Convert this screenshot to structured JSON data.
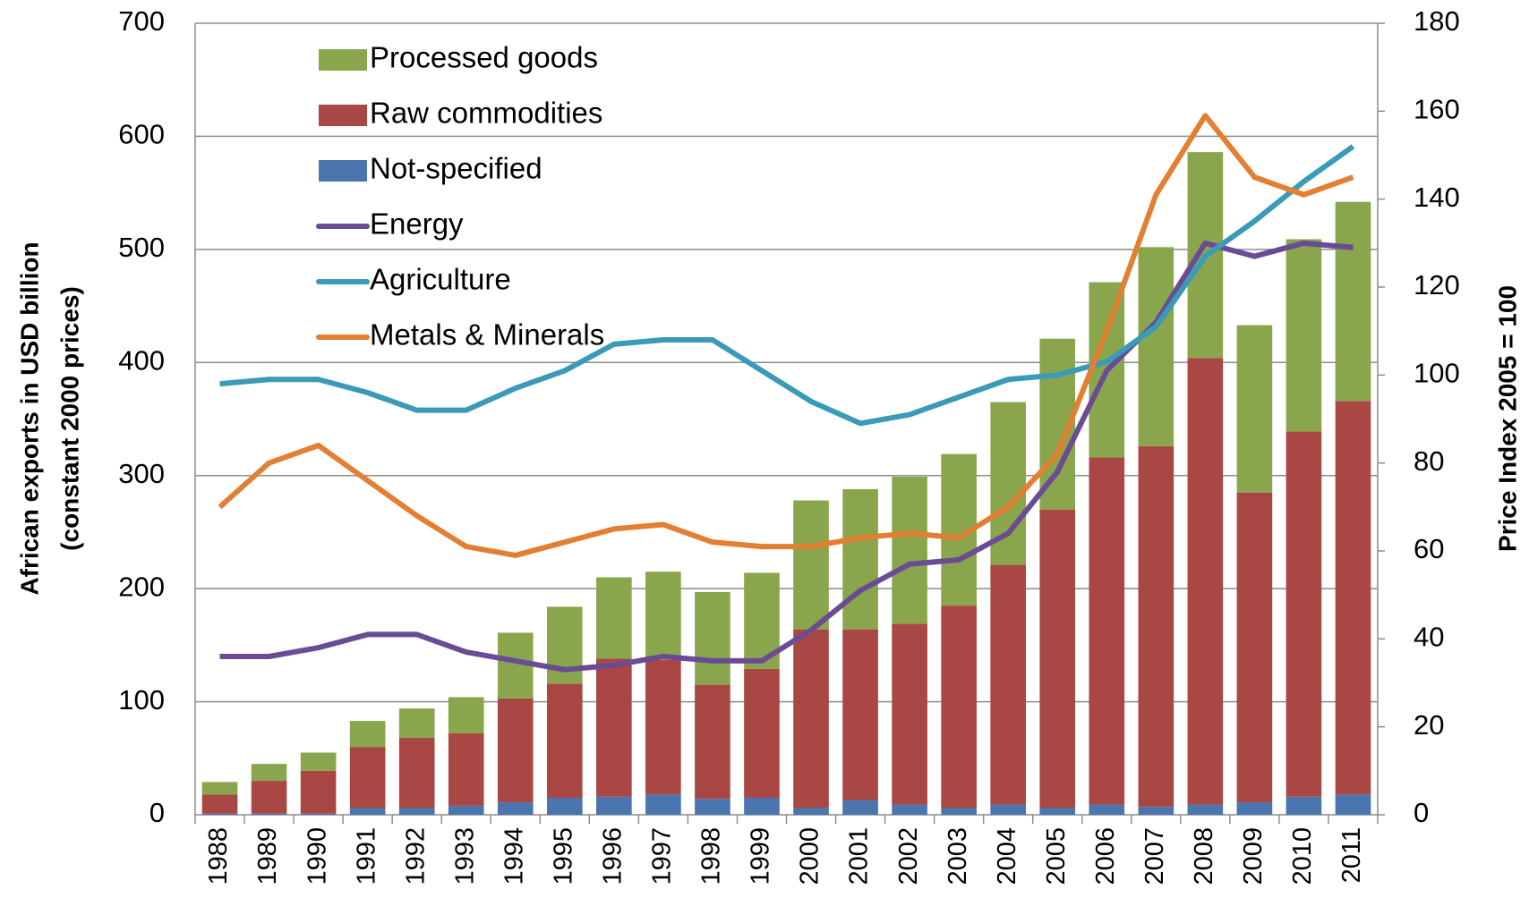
{
  "chart_data": {
    "type": "bar_line",
    "ylabel": [
      "African exports in USD billion",
      "(constant 2000 prices)"
    ],
    "y2label": "Price Index 2005 = 100",
    "categories": [
      "1988",
      "1989",
      "1990",
      "1991",
      "1992",
      "1993",
      "1994",
      "1995",
      "1996",
      "1997",
      "1998",
      "1999",
      "2000",
      "2001",
      "2002",
      "2003",
      "2004",
      "2005",
      "2006",
      "2007",
      "2008",
      "2009",
      "2010",
      "2011"
    ],
    "series": [
      {
        "name": "Not-specified",
        "color": "#4a75ae",
        "kind": "bar",
        "values": [
          1,
          1,
          1,
          6,
          6,
          8,
          11,
          15,
          16,
          18,
          14,
          15,
          6,
          13,
          9,
          6,
          9,
          6,
          9,
          7,
          9,
          11,
          16,
          18
        ]
      },
      {
        "name": "Raw commodities",
        "color": "#a84744",
        "kind": "bar",
        "values": [
          17,
          29,
          38,
          54,
          62,
          64,
          92,
          101,
          122,
          119,
          101,
          114,
          158,
          151,
          160,
          179,
          212,
          264,
          307,
          319,
          395,
          274,
          323,
          348
        ]
      },
      {
        "name": "Processed goods",
        "color": "#8aa64c",
        "kind": "bar",
        "values": [
          11,
          15,
          16,
          23,
          26,
          32,
          58,
          68,
          72,
          78,
          82,
          85,
          114,
          124,
          130,
          134,
          144,
          151,
          155,
          176,
          182,
          148,
          170,
          176
        ]
      },
      {
        "name": "Energy",
        "color": "#6b4c94",
        "kind": "line",
        "axis": "y2",
        "values": [
          36,
          36,
          38,
          41,
          41,
          37,
          35,
          33,
          34,
          36,
          35,
          35,
          42,
          51,
          57,
          58,
          64,
          78,
          101,
          112,
          130,
          127,
          130,
          129
        ]
      },
      {
        "name": "Agriculture",
        "color": "#3a9ab8",
        "kind": "line",
        "axis": "y2",
        "values": [
          98,
          99,
          99,
          96,
          92,
          92,
          97,
          101,
          107,
          108,
          108,
          101,
          94,
          89,
          91,
          95,
          99,
          100,
          103,
          111,
          127,
          135,
          144,
          152
        ]
      },
      {
        "name": "Metals  & Minerals",
        "color": "#e27f33",
        "kind": "line",
        "axis": "y2",
        "values": [
          70,
          80,
          84,
          76,
          68,
          61,
          59,
          62,
          65,
          66,
          62,
          61,
          61,
          63,
          64,
          63,
          70,
          82,
          110,
          141,
          159,
          145,
          141,
          145
        ]
      }
    ],
    "ylim": [
      0,
      700
    ],
    "yticks": [
      0,
      100,
      200,
      300,
      400,
      500,
      600,
      700
    ],
    "y2lim": [
      0,
      180
    ],
    "y2ticks": [
      0,
      20,
      40,
      60,
      80,
      100,
      120,
      140,
      160,
      180
    ],
    "grid": true
  }
}
